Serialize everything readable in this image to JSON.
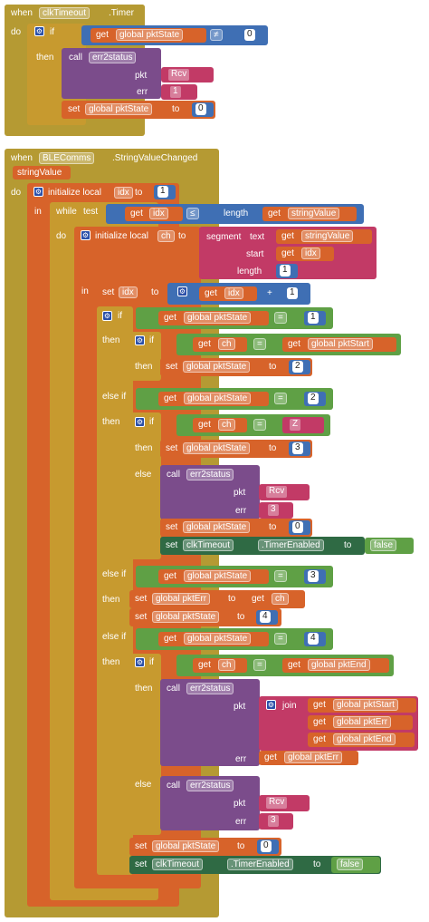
{
  "b1": {
    "when": "when",
    "comp": "clkTimeout",
    "event": ".Timer",
    "do": "do",
    "if": "if",
    "get": "get",
    "var": "global pktState",
    "op": "≠",
    "num0": "0",
    "then": "then",
    "call": "call",
    "proc": "err2status",
    "pkt": "pkt",
    "rcv": "Rcv",
    "err": "err",
    "one": "1",
    "set": "set",
    "to": "to",
    "zero": "0"
  },
  "b2": {
    "when": "when",
    "comp": "BLEComms",
    "event": ".StringValueChanged",
    "param": "stringValue",
    "do": "do",
    "init": "initialize local",
    "idx": "idx",
    "to": "to",
    "one": "1",
    "in": "in",
    "while": "while",
    "test": "test",
    "get": "get",
    "le": "≤",
    "length": "length",
    "stringValue": "stringValue",
    "init2": "initialize local",
    "ch": "ch",
    "segment": "segment",
    "text": "text",
    "start": "start",
    "len": "length",
    "set": "set",
    "plus": "+",
    "if": "if",
    "pktState": "global pktState",
    "eq": "=",
    "then": "then",
    "pktStart": "global pktStart",
    "two": "2",
    "elseif": "else if",
    "z": "Z",
    "three": "3",
    "else": "else",
    "call": "call",
    "proc": "err2status",
    "pkt": "pkt",
    "rcv": "Rcv",
    "err": "err",
    "zero": "0",
    "clkTimeout": "clkTimeout",
    "timerEnabled": ".TimerEnabled",
    "false": "false",
    "pktErr": "global pktErr",
    "four": "4",
    "pktEnd": "global pktEnd",
    "join": "join"
  }
}
